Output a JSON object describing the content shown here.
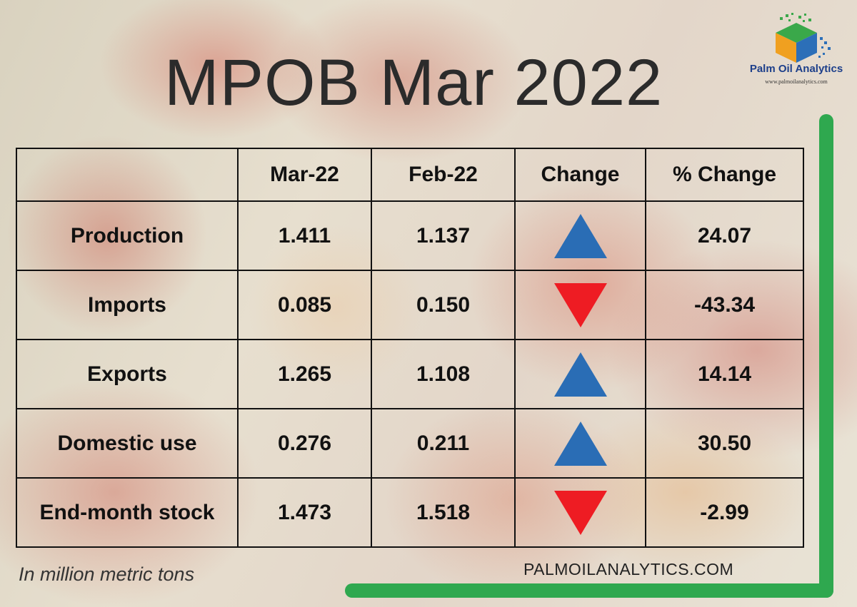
{
  "title": "MPOB Mar 2022",
  "logo": {
    "name": "Palm Oil Analytics",
    "url": "www.palmoilanalytics.com"
  },
  "table": {
    "headers": [
      "",
      "Mar-22",
      "Feb-22",
      "Change",
      "% Change"
    ],
    "rows": [
      {
        "label": "Production",
        "mar": "1.411",
        "feb": "1.137",
        "direction": "up",
        "pct": "24.07"
      },
      {
        "label": "Imports",
        "mar": "0.085",
        "feb": "0.150",
        "direction": "down",
        "pct": "-43.34"
      },
      {
        "label": "Exports",
        "mar": "1.265",
        "feb": "1.108",
        "direction": "up",
        "pct": "14.14"
      },
      {
        "label": "Domestic use",
        "mar": "0.276",
        "feb": "0.211",
        "direction": "up",
        "pct": "30.50"
      },
      {
        "label": "End-month stock",
        "mar": "1.473",
        "feb": "1.518",
        "direction": "down",
        "pct": "-2.99"
      }
    ]
  },
  "footnote": "In million metric tons",
  "website": "PALMOILANALYTICS.COM",
  "colors": {
    "up": "#2a6db5",
    "down": "#ee1c23",
    "negative_text": "#e3241b",
    "accent_frame": "#2fa84f",
    "logo_text": "#1d3f8a"
  }
}
